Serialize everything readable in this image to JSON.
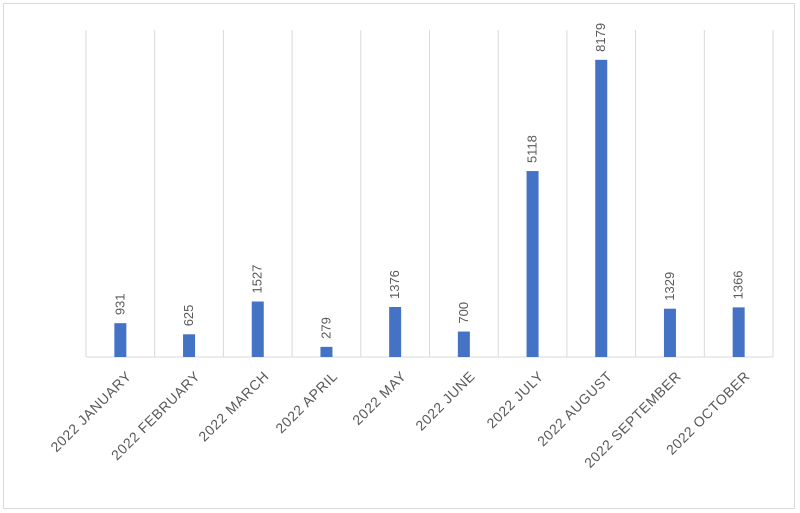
{
  "chart_data": {
    "type": "bar",
    "categories": [
      "2022 JANUARY",
      "2022 FEBRUARY",
      "2022 MARCH",
      "2022 APRIL",
      "2022 MAY",
      "2022 JUNE",
      "2022 JULY",
      "2022 AUGUST",
      "2022 SEPTEMBER",
      "2022 OCTOBER"
    ],
    "values": [
      931,
      625,
      1527,
      279,
      1376,
      700,
      5118,
      8179,
      1329,
      1366
    ],
    "title": "",
    "xlabel": "",
    "ylabel": "",
    "ylim": [
      0,
      9000
    ],
    "grid": "vertical category dividers",
    "legend": "none",
    "bar_color": "#4472C4",
    "grid_color": "#d9d9d9",
    "label_color": "#595959"
  }
}
